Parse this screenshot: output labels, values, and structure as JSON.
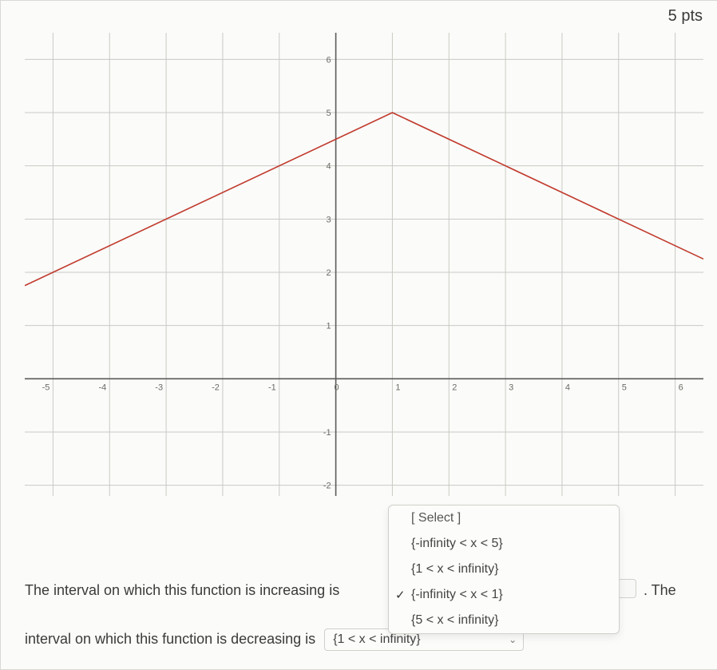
{
  "points_label": "5 pts",
  "chart": {
    "type": "line",
    "xlim": [
      -5.5,
      6.5
    ],
    "ylim": [
      -2.2,
      6.5
    ],
    "xtick_start": -5,
    "xtick_end": 6,
    "xtick_step": 1,
    "ytick_start": -2,
    "ytick_end": 6,
    "ytick_step": 1,
    "grid_color": "#c9c9c5",
    "axis_color": "#5a5a56",
    "tick_label_color": "#6b6b67",
    "tick_fontsize": 11,
    "background_color": "#fbfbf9",
    "line_color": "#c0392b",
    "line_width": 1.6,
    "points": [
      {
        "x": -5.5,
        "y": 1.75
      },
      {
        "x": 1,
        "y": 5
      },
      {
        "x": 6.5,
        "y": 2.25
      }
    ]
  },
  "sentence_increasing": "The interval on which this function is increasing is",
  "sentence_tail": ". The",
  "sentence_decreasing": "interval on which this function is decreasing is",
  "dropdown_increasing": {
    "placeholder": "[ Select ]",
    "options": [
      "{-infinity < x < 5}",
      "{1 < x < infinity}",
      "{-infinity < x < 1}",
      "{5 < x < infinity}"
    ],
    "selected_index": 2
  },
  "dropdown_decreasing": {
    "selected": "{1 < x < infinity}"
  }
}
